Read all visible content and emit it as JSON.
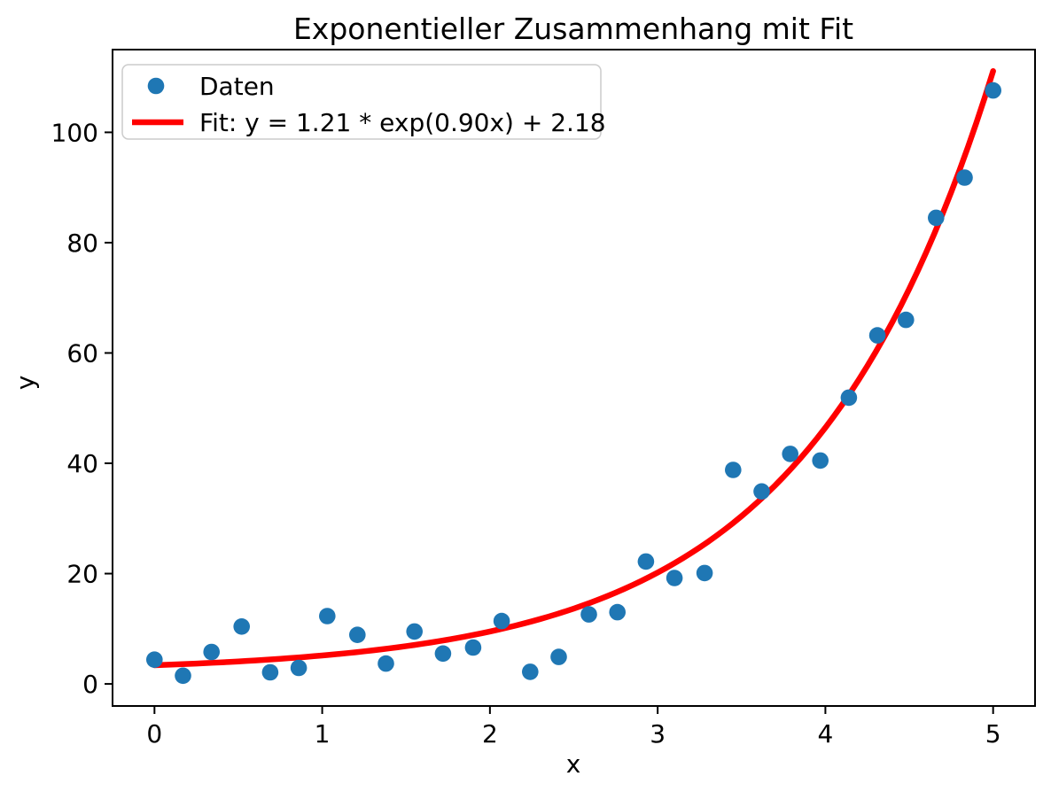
{
  "chart_data": {
    "type": "scatter",
    "title": "Exponentieller Zusammenhang mit Fit",
    "xlabel": "x",
    "ylabel": "y",
    "xlim": [
      -0.25,
      5.25
    ],
    "ylim": [
      -4,
      115
    ],
    "xticks": [
      0,
      1,
      2,
      3,
      4,
      5
    ],
    "yticks": [
      0,
      20,
      40,
      60,
      80,
      100
    ],
    "grid": false,
    "colors": {
      "scatter": "#1f77b4",
      "fit_line": "#ff0000",
      "spine": "#000000",
      "legend_border": "#cccccc"
    },
    "series": [
      {
        "name": "Daten",
        "type": "scatter",
        "color": "#1f77b4",
        "x": [
          0.0,
          0.17,
          0.34,
          0.52,
          0.69,
          0.86,
          1.03,
          1.21,
          1.38,
          1.55,
          1.72,
          1.9,
          2.07,
          2.24,
          2.41,
          2.59,
          2.76,
          2.93,
          3.1,
          3.28,
          3.45,
          3.62,
          3.79,
          3.97,
          4.14,
          4.31,
          4.48,
          4.66,
          4.83,
          5.0
        ],
        "y": [
          4.4,
          1.5,
          5.8,
          10.4,
          2.1,
          2.9,
          12.3,
          8.9,
          3.7,
          9.5,
          5.5,
          6.6,
          11.4,
          2.2,
          4.9,
          12.6,
          13.0,
          22.2,
          19.2,
          20.1,
          38.8,
          34.9,
          41.7,
          40.5,
          51.9,
          63.2,
          66.0,
          84.5,
          91.8,
          107.6
        ]
      },
      {
        "name": "Fit",
        "type": "line",
        "color": "#ff0000",
        "fit_params": {
          "a": 1.21,
          "b": 0.9,
          "c": 2.18
        },
        "x_range": [
          0,
          5
        ]
      }
    ],
    "legend": {
      "position": "upper left",
      "entries": [
        {
          "label": "Daten",
          "handle": "marker",
          "color": "#1f77b4"
        },
        {
          "label": "Fit: y = 1.21 * exp(0.90x) + 2.18",
          "handle": "line",
          "color": "#ff0000"
        }
      ]
    }
  }
}
